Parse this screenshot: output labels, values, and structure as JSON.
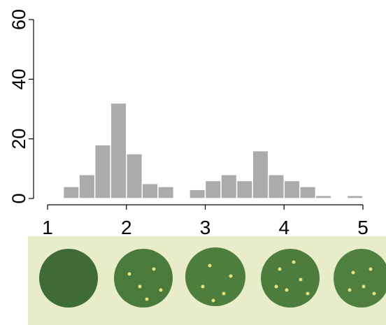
{
  "chart_data": {
    "type": "histogram",
    "bins": [
      1.2,
      1.4,
      1.6,
      1.8,
      2.0,
      2.2,
      2.4,
      2.6,
      2.8,
      3.0,
      3.2,
      3.4,
      3.6,
      3.8,
      4.0,
      4.2,
      4.4,
      4.6,
      4.8,
      5.0
    ],
    "values": [
      4,
      8,
      18,
      32,
      15,
      5,
      4,
      0,
      3,
      6,
      8,
      6,
      16,
      8,
      6,
      4,
      1,
      0,
      1
    ],
    "color": "#ababab",
    "xlim": [
      1,
      5
    ],
    "xticks": [
      1,
      2,
      3,
      4,
      5
    ],
    "ylim": [
      0,
      60
    ],
    "yticks": [
      0,
      20,
      40,
      60
    ]
  }
}
